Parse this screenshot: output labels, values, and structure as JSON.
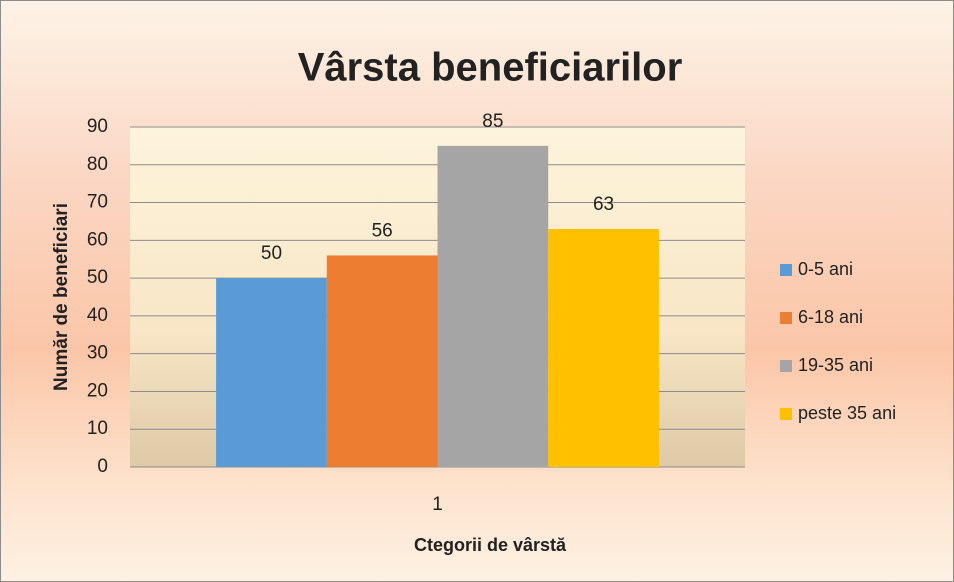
{
  "chart_data": {
    "type": "bar",
    "title": "Vârsta beneficiarilor",
    "x_label": "Ctegorii de vârstă",
    "y_label": "Număr de beneficiari",
    "categories": [
      "1"
    ],
    "series": [
      {
        "name": "0-5 ani",
        "color": "#5b9bd5",
        "values": [
          50
        ]
      },
      {
        "name": "6-18 ani",
        "color": "#ed7d31",
        "values": [
          56
        ]
      },
      {
        "name": "19-35 ani",
        "color": "#a5a5a5",
        "values": [
          85
        ]
      },
      {
        "name": "peste 35 ani",
        "color": "#ffc000",
        "values": [
          63
        ]
      }
    ],
    "ylim": [
      0,
      90
    ],
    "yticks": [
      0,
      10,
      20,
      30,
      40,
      50,
      60,
      70,
      80,
      90
    ],
    "grid": true,
    "legend": "right"
  }
}
